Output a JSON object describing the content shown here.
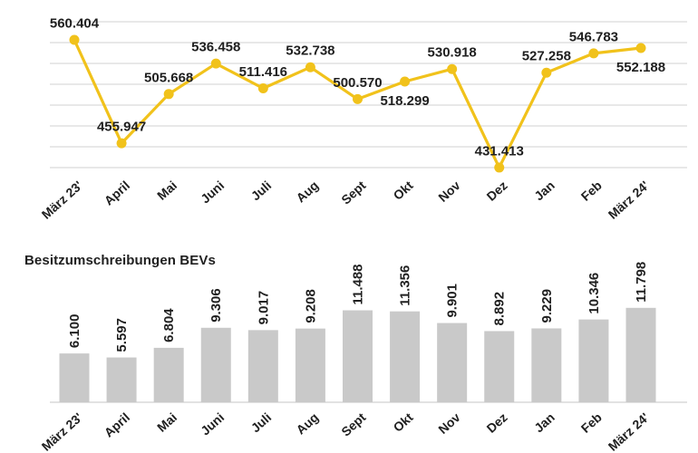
{
  "colors": {
    "line": "#F1C21B",
    "marker": "#F1C21B",
    "bar": "#C9C9C9",
    "grid": "#D9D9D9",
    "axis": "#D9D9D9",
    "text": "#1F1F1F",
    "background": "#FFFFFF"
  },
  "chart_data": [
    {
      "type": "line",
      "title": "",
      "categories": [
        "März 23'",
        "April",
        "Mai",
        "Juni",
        "Juli",
        "Aug",
        "Sept",
        "Okt",
        "Nov",
        "Dez",
        "Jan",
        "Feb",
        "März 24'"
      ],
      "values": [
        560404,
        455947,
        505668,
        536458,
        511416,
        532738,
        500570,
        518299,
        530918,
        431413,
        527258,
        546783,
        552188
      ],
      "value_labels": [
        "560.404",
        "455.947",
        "505.668",
        "536.458",
        "511.416",
        "532.738",
        "500.570",
        "518.299",
        "530.918",
        "431.413",
        "527.258",
        "546.783",
        "552.188"
      ],
      "labels_below_point": [
        7,
        12
      ],
      "xlabel": "",
      "ylabel": "",
      "ylim": [
        420000,
        580000
      ],
      "grid": true,
      "legend": "none"
    },
    {
      "type": "bar",
      "title": "Besitzumschreibungen BEVs",
      "categories": [
        "März 23'",
        "April",
        "Mai",
        "Juni",
        "Juli",
        "Aug",
        "Sept",
        "Okt",
        "Nov",
        "Dez",
        "Jan",
        "Feb",
        "März 24'"
      ],
      "values": [
        6100,
        5597,
        6804,
        9306,
        9017,
        9208,
        11488,
        11356,
        9901,
        8892,
        9229,
        10346,
        11798
      ],
      "value_labels": [
        "6.100",
        "5.597",
        "6.804",
        "9.306",
        "9.017",
        "9.208",
        "11.488",
        "11.356",
        "9.901",
        "8.892",
        "9.229",
        "10.346",
        "11.798"
      ],
      "value_label_rotation_deg": -90,
      "xlabel": "",
      "ylabel": "",
      "ylim": [
        0,
        12000
      ],
      "grid": false,
      "legend": "none"
    }
  ]
}
